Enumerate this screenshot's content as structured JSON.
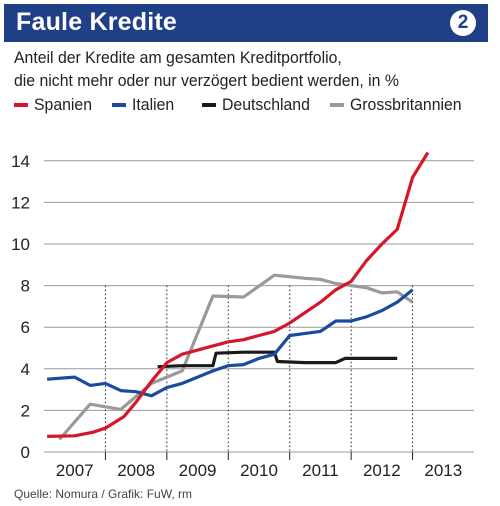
{
  "header": {
    "title": "Faule Kredite",
    "badge": "2"
  },
  "subtitle_lines": [
    "Anteil der Kredite am gesamten Kreditportfolio,",
    "die nicht mehr oder nur verzögert bedient werden, in %"
  ],
  "source": "Quelle: Nomura / Grafik: FuW, rm",
  "colors": {
    "header_bg": "#1f3f87",
    "spanien": "#d4172a",
    "italien": "#1a4b9c",
    "deutschland": "#1a1a1a",
    "grossbritannien": "#9a9a9a"
  },
  "chart_data": {
    "type": "line",
    "title": "Faule Kredite",
    "xlabel": "",
    "ylabel": "",
    "x_ticks": [
      "2007",
      "2008",
      "2009",
      "2010",
      "2011",
      "2012",
      "2013"
    ],
    "xlim": [
      2006.5,
      2013.5
    ],
    "ylim": [
      0,
      15
    ],
    "y_ticks": [
      0,
      2,
      4,
      6,
      8,
      10,
      12,
      14
    ],
    "grid": "horizontal lines and dotted vertical year markers",
    "legend_position": "top",
    "series": [
      {
        "name": "Spanien",
        "color": "#d4172a",
        "points": [
          [
            2006.55,
            0.75
          ],
          [
            2007.0,
            0.78
          ],
          [
            2007.3,
            0.95
          ],
          [
            2007.5,
            1.15
          ],
          [
            2007.8,
            1.7
          ],
          [
            2008.0,
            2.4
          ],
          [
            2008.25,
            3.4
          ],
          [
            2008.5,
            4.3
          ],
          [
            2008.75,
            4.7
          ],
          [
            2009.0,
            4.9
          ],
          [
            2009.25,
            5.1
          ],
          [
            2009.5,
            5.3
          ],
          [
            2009.75,
            5.4
          ],
          [
            2010.0,
            5.6
          ],
          [
            2010.25,
            5.8
          ],
          [
            2010.5,
            6.2
          ],
          [
            2010.75,
            6.7
          ],
          [
            2011.0,
            7.2
          ],
          [
            2011.25,
            7.8
          ],
          [
            2011.5,
            8.2
          ],
          [
            2011.75,
            9.2
          ],
          [
            2012.0,
            10.0
          ],
          [
            2012.25,
            10.7
          ],
          [
            2012.5,
            13.2
          ],
          [
            2012.75,
            14.4
          ]
        ]
      },
      {
        "name": "Italien",
        "color": "#1a4b9c",
        "points": [
          [
            2006.55,
            3.5
          ],
          [
            2007.0,
            3.6
          ],
          [
            2007.25,
            3.2
          ],
          [
            2007.5,
            3.3
          ],
          [
            2007.75,
            2.95
          ],
          [
            2008.0,
            2.9
          ],
          [
            2008.25,
            2.7
          ],
          [
            2008.5,
            3.1
          ],
          [
            2008.75,
            3.3
          ],
          [
            2009.0,
            3.6
          ],
          [
            2009.25,
            3.9
          ],
          [
            2009.5,
            4.15
          ],
          [
            2009.75,
            4.2
          ],
          [
            2010.0,
            4.5
          ],
          [
            2010.25,
            4.7
          ],
          [
            2010.5,
            5.6
          ],
          [
            2010.75,
            5.7
          ],
          [
            2011.0,
            5.8
          ],
          [
            2011.25,
            6.3
          ],
          [
            2011.5,
            6.3
          ],
          [
            2011.75,
            6.5
          ],
          [
            2012.0,
            6.8
          ],
          [
            2012.25,
            7.2
          ],
          [
            2012.5,
            7.8
          ]
        ]
      },
      {
        "name": "Deutschland",
        "color": "#1a1a1a",
        "points": [
          [
            2008.35,
            4.1
          ],
          [
            2008.75,
            4.15
          ],
          [
            2009.25,
            4.15
          ],
          [
            2009.3,
            4.75
          ],
          [
            2009.75,
            4.8
          ],
          [
            2010.25,
            4.8
          ],
          [
            2010.3,
            4.35
          ],
          [
            2010.75,
            4.3
          ],
          [
            2011.25,
            4.3
          ],
          [
            2011.4,
            4.5
          ],
          [
            2012.0,
            4.5
          ],
          [
            2012.25,
            4.5
          ]
        ]
      },
      {
        "name": "Grossbritannien",
        "color": "#9a9a9a",
        "points": [
          [
            2006.75,
            0.6
          ],
          [
            2007.25,
            2.3
          ],
          [
            2007.75,
            2.05
          ],
          [
            2008.25,
            3.3
          ],
          [
            2008.75,
            3.9
          ],
          [
            2009.25,
            7.5
          ],
          [
            2009.75,
            7.45
          ],
          [
            2010.25,
            8.5
          ],
          [
            2010.75,
            8.35
          ],
          [
            2011.0,
            8.3
          ],
          [
            2011.25,
            8.1
          ],
          [
            2011.75,
            7.9
          ],
          [
            2012.0,
            7.65
          ],
          [
            2012.25,
            7.7
          ],
          [
            2012.5,
            7.2
          ]
        ]
      }
    ]
  }
}
